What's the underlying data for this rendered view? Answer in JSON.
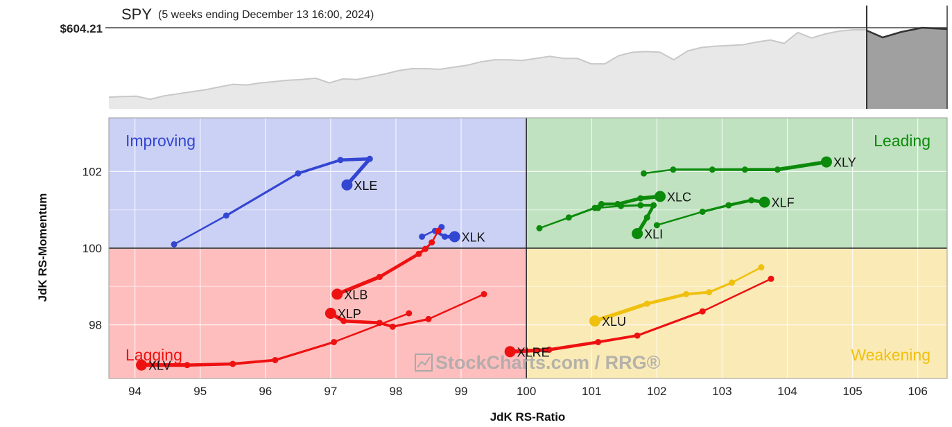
{
  "header": {
    "symbol": "SPY",
    "subtitle": "(5 weeks ending December 13 16:00, 2024)",
    "price": "$604.21"
  },
  "watermark": "StockCharts.com / RRG®",
  "price_series": [
    17,
    18,
    18.5,
    14,
    19,
    22,
    25,
    28,
    32,
    36,
    35,
    38,
    40,
    42,
    43,
    45,
    38,
    44,
    43,
    47,
    51,
    56,
    59,
    59,
    58,
    61,
    64,
    69,
    72,
    72,
    71,
    74,
    77,
    74,
    74,
    66,
    66,
    78,
    83,
    84,
    83,
    72,
    85,
    90,
    92,
    93,
    94,
    98,
    101,
    96,
    112,
    104,
    110,
    114,
    116,
    116
  ],
  "colors": {
    "improving_bg": "#cbd0f5",
    "leading_bg": "#c0e2c0",
    "lagging_bg": "#ffbebe",
    "weakening_bg": "#faeab6",
    "blue": "#3346d2",
    "green": "#0b8a0b",
    "red": "#ee1111",
    "yellow": "#efc00e",
    "price_fill": "#e8e8e8",
    "price_line": "#c8c8c8",
    "price_future": "#a0a0a0"
  },
  "chart_data": {
    "type": "scatter",
    "title": "",
    "xlabel": "JdK RS-Ratio",
    "ylabel": "JdK RS-Momentum",
    "xlim": [
      93.6,
      106.45
    ],
    "ylim": [
      96.6,
      103.4
    ],
    "x_ticks": [
      "94",
      "95",
      "96",
      "97",
      "98",
      "99",
      "100",
      "101",
      "102",
      "103",
      "104",
      "105",
      "106"
    ],
    "y_ticks": [
      "98",
      "100",
      "102"
    ],
    "quadrants": {
      "improving": "Improving",
      "leading": "Leading",
      "lagging": "Lagging",
      "weakening": "Weakening"
    },
    "series": [
      {
        "name": "XLE",
        "color": "blue",
        "label_pos": "right",
        "points": [
          [
            94.6,
            100.1
          ],
          [
            95.4,
            100.85
          ],
          [
            96.5,
            101.95
          ],
          [
            97.15,
            102.3
          ],
          [
            97.6,
            102.33
          ],
          [
            97.25,
            101.65
          ]
        ]
      },
      {
        "name": "XLK",
        "color": "blue",
        "label_pos": "right",
        "points": [
          [
            98.4,
            100.3
          ],
          [
            98.7,
            100.55
          ],
          [
            98.6,
            100.45
          ],
          [
            98.75,
            100.3
          ],
          [
            98.9,
            100.3
          ]
        ]
      },
      {
        "name": "XLY",
        "color": "green",
        "label_pos": "right",
        "points": [
          [
            101.8,
            101.95
          ],
          [
            102.25,
            102.05
          ],
          [
            102.85,
            102.05
          ],
          [
            103.35,
            102.05
          ],
          [
            103.85,
            102.05
          ],
          [
            104.6,
            102.25
          ]
        ]
      },
      {
        "name": "XLC",
        "color": "green",
        "label_pos": "right",
        "points": [
          [
            100.2,
            100.52
          ],
          [
            100.65,
            100.8
          ],
          [
            101.05,
            101.05
          ],
          [
            101.15,
            101.15
          ],
          [
            101.4,
            101.15
          ],
          [
            101.75,
            101.3
          ],
          [
            102.05,
            101.35
          ]
        ]
      },
      {
        "name": "XLF",
        "color": "green",
        "label_pos": "right",
        "points": [
          [
            102.0,
            100.6
          ],
          [
            102.7,
            100.95
          ],
          [
            103.1,
            101.12
          ],
          [
            103.45,
            101.25
          ],
          [
            103.65,
            101.2
          ]
        ]
      },
      {
        "name": "XLI",
        "color": "green",
        "label_pos": "right",
        "points": [
          [
            101.1,
            101.05
          ],
          [
            101.45,
            101.1
          ],
          [
            101.75,
            101.12
          ],
          [
            101.95,
            101.12
          ],
          [
            101.85,
            100.8
          ],
          [
            101.7,
            100.38
          ]
        ]
      },
      {
        "name": "XLB",
        "color": "red",
        "label_pos": "right",
        "points": [
          [
            98.65,
            100.45
          ],
          [
            98.55,
            100.15
          ],
          [
            98.45,
            99.98
          ],
          [
            98.35,
            99.85
          ],
          [
            97.75,
            99.25
          ],
          [
            97.1,
            98.8
          ]
        ]
      },
      {
        "name": "XLP",
        "color": "red",
        "label_pos": "right",
        "points": [
          [
            99.35,
            98.8
          ],
          [
            98.5,
            98.15
          ],
          [
            97.95,
            97.95
          ],
          [
            97.75,
            98.05
          ],
          [
            97.2,
            98.1
          ],
          [
            97.0,
            98.3
          ]
        ]
      },
      {
        "name": "XLV",
        "color": "red",
        "label_pos": "right",
        "points": [
          [
            98.2,
            98.3
          ],
          [
            97.05,
            97.55
          ],
          [
            96.15,
            97.08
          ],
          [
            95.5,
            96.98
          ],
          [
            94.8,
            96.95
          ],
          [
            94.1,
            96.95
          ]
        ]
      },
      {
        "name": "XLRE",
        "color": "red",
        "label_pos": "right",
        "points": [
          [
            103.75,
            99.2
          ],
          [
            102.7,
            98.35
          ],
          [
            101.7,
            97.72
          ],
          [
            101.1,
            97.55
          ],
          [
            100.35,
            97.35
          ],
          [
            99.75,
            97.3
          ]
        ]
      },
      {
        "name": "XLU",
        "color": "yellow",
        "label_pos": "right",
        "points": [
          [
            103.6,
            99.5
          ],
          [
            103.15,
            99.1
          ],
          [
            102.8,
            98.85
          ],
          [
            102.45,
            98.8
          ],
          [
            101.85,
            98.55
          ],
          [
            101.05,
            98.1
          ]
        ]
      }
    ]
  }
}
